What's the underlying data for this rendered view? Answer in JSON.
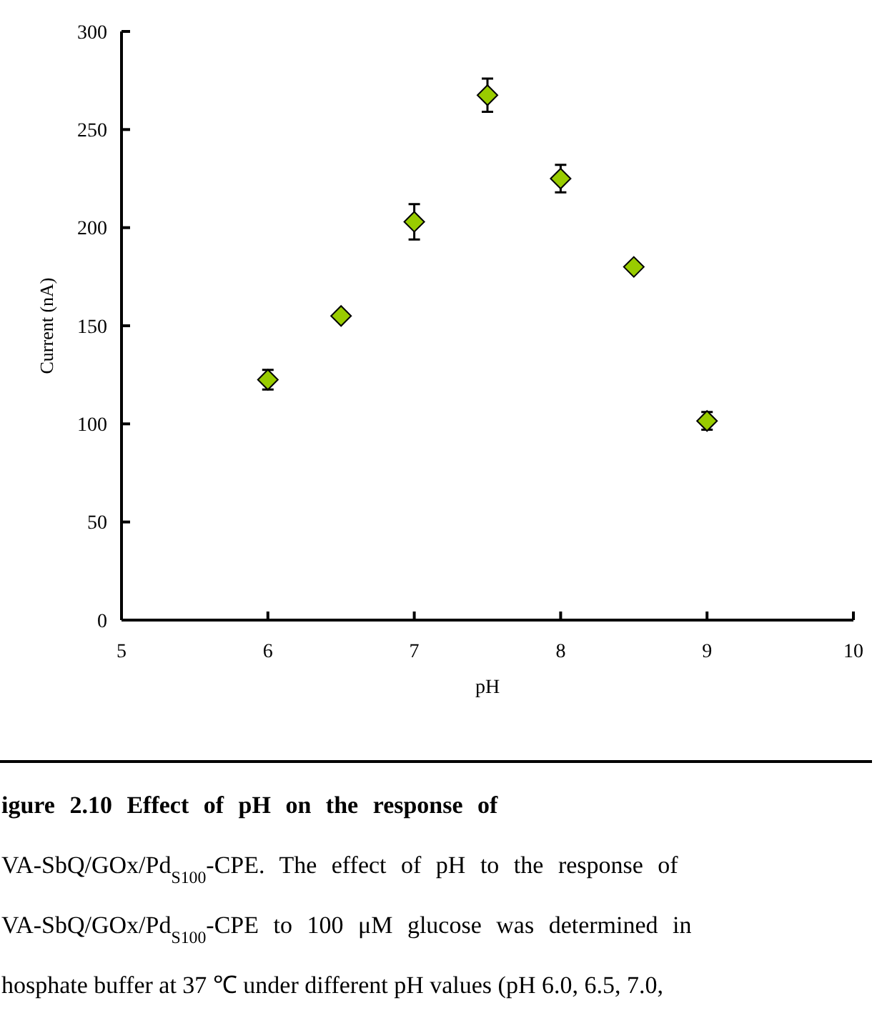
{
  "chart_data": {
    "type": "scatter",
    "xlabel": "pH",
    "ylabel": "Current (nA)",
    "x": [
      6,
      6.5,
      7,
      7.5,
      8,
      8.5,
      9
    ],
    "series": [
      {
        "color": "#99cc00",
        "values": [
          122.5,
          155,
          203,
          267.5,
          225,
          180,
          101.5
        ],
        "errors": [
          5,
          null,
          9,
          8.5,
          7,
          null,
          4.5
        ]
      }
    ],
    "xlim": [
      5,
      10
    ],
    "xticks": [
      5,
      6,
      7,
      8,
      9,
      10
    ],
    "ylim": [
      0,
      300
    ],
    "yticks": [
      0,
      50,
      100,
      150,
      200,
      250,
      300
    ],
    "marker": "diamond",
    "annotations": [
      "igure 2.10 Effect of pH on the response of",
      "VA-SbQ/GOx/Pd$_{S100}$-CPE. The effect of pH to the response of",
      "VA-SbQ/GOx/Pd$_{S100}$-CPE to 100 μM glucose was determined in",
      "hosphate buffer at 37 ℃ under different pH values (pH 6.0, 6.5, 7.0,"
    ]
  }
}
